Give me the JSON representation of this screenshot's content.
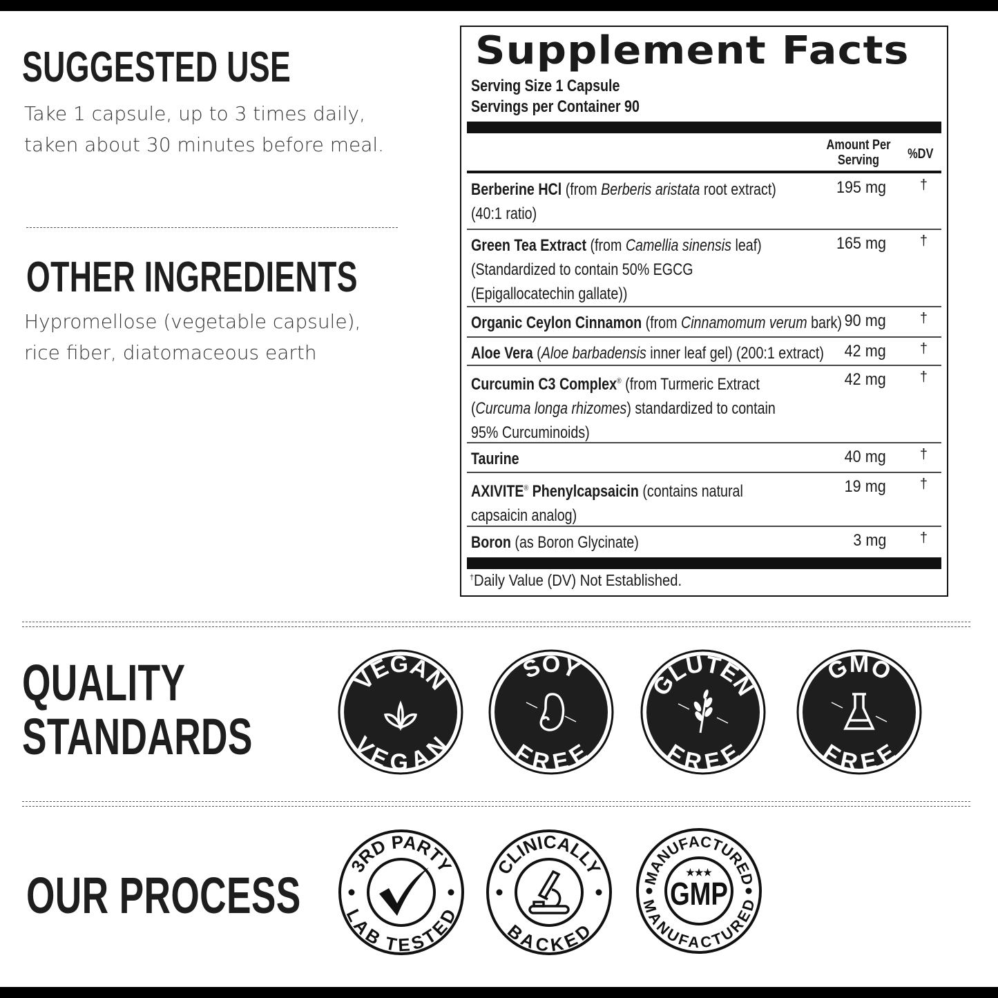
{
  "suggested_use": {
    "heading": "SUGGESTED USE",
    "lines": [
      "Take 1 capsule, up to 3 times daily,",
      "taken about 30 minutes before meal."
    ]
  },
  "other_ingredients": {
    "heading": "OTHER INGREDIENTS",
    "lines": [
      "Hypromellose (vegetable capsule),",
      "rice fiber, diatomaceous earth"
    ]
  },
  "supplement_facts": {
    "title": "Supplement Facts",
    "serving_size": "Serving Size 1 Capsule",
    "servings_per_container": "Servings per Container 90",
    "col_amount": [
      "Amount Per",
      "Serving"
    ],
    "col_dv": "%DV",
    "rows": [
      {
        "segments": [
          {
            "t": "Berberine HCl",
            "s": "b"
          },
          {
            "t": " (from ",
            "s": ""
          },
          {
            "t": "Berberis aristata",
            "s": "i"
          },
          {
            "t": " root extract) (40:1 ratio)",
            "s": ""
          }
        ],
        "amount": "195 mg",
        "dv": "†"
      },
      {
        "segments": [
          {
            "t": "Green Tea Extract",
            "s": "b"
          },
          {
            "t": " (from ",
            "s": ""
          },
          {
            "t": "Camellia sinensis",
            "s": "i"
          },
          {
            "t": " leaf) (Standardized to contain 50% EGCG (Epigallocatechin gallate))",
            "s": ""
          }
        ],
        "amount": "165 mg",
        "dv": "†"
      },
      {
        "segments": [
          {
            "t": "Organic Ceylon Cinnamon",
            "s": "b"
          },
          {
            "t": " (from ",
            "s": ""
          },
          {
            "t": "Cinnamomum verum",
            "s": "i"
          },
          {
            "t": " bark)",
            "s": ""
          }
        ],
        "amount": "90 mg",
        "dv": "†"
      },
      {
        "segments": [
          {
            "t": "Aloe Vera",
            "s": "b"
          },
          {
            "t": " (",
            "s": ""
          },
          {
            "t": "Aloe barbadensis",
            "s": "i"
          },
          {
            "t": " inner leaf gel) (200:1 extract)",
            "s": ""
          }
        ],
        "amount": "42 mg",
        "dv": "†"
      },
      {
        "segments": [
          {
            "t": "Curcumin C3 Complex",
            "s": "b"
          },
          {
            "t": "®",
            "s": "sup"
          },
          {
            "t": " (from Turmeric Extract (",
            "s": ""
          },
          {
            "t": "Curcuma longa rhizomes",
            "s": "i"
          },
          {
            "t": ") standardized to contain 95% Curcuminoids)",
            "s": ""
          }
        ],
        "amount": "42 mg",
        "dv": "†"
      },
      {
        "segments": [
          {
            "t": "Taurine",
            "s": "b"
          }
        ],
        "amount": "40 mg",
        "dv": "†"
      },
      {
        "segments": [
          {
            "t": "AXIVITE",
            "s": "b"
          },
          {
            "t": "®",
            "s": "sup"
          },
          {
            "t": " Phenylcapsaicin",
            "s": "b"
          },
          {
            "t": " (contains natural capsaicin analog)",
            "s": ""
          }
        ],
        "amount": "19 mg",
        "dv": "†"
      },
      {
        "segments": [
          {
            "t": "Boron",
            "s": "b"
          },
          {
            "t": " (as Boron Glycinate)",
            "s": ""
          }
        ],
        "amount": "3 mg",
        "dv": "†"
      }
    ],
    "footnote_mark": "†",
    "footnote": "Daily Value (DV) Not Established."
  },
  "quality_standards": {
    "heading": [
      "QUALITY",
      "STANDARDS"
    ],
    "badges": [
      {
        "top": "VEGAN",
        "bottom": "VEGAN",
        "icon": "leaf-icon"
      },
      {
        "top": "SOY",
        "bottom": "FREE",
        "icon": "bean-icon"
      },
      {
        "top": "GLUTEN",
        "bottom": "FREE",
        "icon": "wheat-icon"
      },
      {
        "top": "GMO",
        "bottom": "FREE",
        "icon": "flask-icon"
      }
    ]
  },
  "our_process": {
    "heading": "OUR PROCESS",
    "badges": [
      {
        "top": "3RD PARTY",
        "bottom": "LAB TESTED",
        "icon": "checkmark-icon"
      },
      {
        "top": "CLINICALLY",
        "bottom": "BACKED",
        "icon": "microscope-icon"
      },
      {
        "top": "MANUFACTURED",
        "bottom": "MANUFACTURED",
        "center": "GMP",
        "stars": "★★★",
        "icon": "gmp-icon"
      }
    ]
  },
  "colors": {
    "ink": "#1a1a1a",
    "badge_fill": "#1e1e1e",
    "background": "#ffffff"
  }
}
